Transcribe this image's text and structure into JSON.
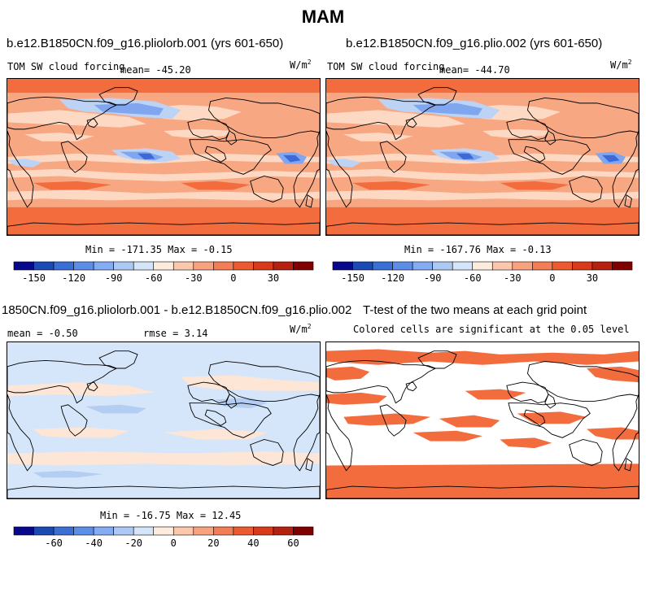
{
  "figure": {
    "title": "MAM"
  },
  "panels": [
    {
      "id": "p1",
      "case_title": "b.e12.B1850CN.f09_g16.pliolorb.001 (yrs 601-650)",
      "variable": "TOM SW cloud forcing",
      "mean_text": "mean= -45.20",
      "units_base": "W/m",
      "units_exp": "2",
      "min_max_text": "Min = -171.35 Max =  -0.15",
      "style": "field"
    },
    {
      "id": "p2",
      "case_title": "b.e12.B1850CN.f09_g16.plio.002 (yrs 601-650)",
      "variable": "TOM SW cloud forcing",
      "mean_text": "mean= -44.70",
      "units_base": "W/m",
      "units_exp": "2",
      "min_max_text": "Min = -167.76 Max =  -0.13",
      "style": "field"
    },
    {
      "id": "p3",
      "case_title": "1850CN.f09_g16.pliolorb.001 - b.e12.B1850CN.f09_g16.plio.002",
      "mean_text": "mean =  -0.50",
      "rmse_text": "rmse =   3.14",
      "units_base": "W/m",
      "units_exp": "2",
      "min_max_text": "Min = -16.75 Max =  12.45",
      "style": "diff"
    },
    {
      "id": "p4",
      "case_title": "T-test of the two means at each grid point",
      "subtitle": "Colored cells are significant at the 0.05 level",
      "style": "ttest"
    }
  ],
  "colorbars": {
    "field": {
      "colors": [
        "#08088c",
        "#1b4ab4",
        "#3a6fd6",
        "#5c8ee8",
        "#83acf2",
        "#acc9f6",
        "#d4e5f9",
        "#fdebde",
        "#fbc8ad",
        "#f8a27f",
        "#f47d55",
        "#ec5a31",
        "#d83a1b",
        "#b5200f",
        "#800000"
      ],
      "tick_labels": [
        "-150",
        "-120",
        "-90",
        "-60",
        "-30",
        "0",
        "30"
      ],
      "tick_positions": [
        1,
        3,
        5,
        7,
        9,
        11,
        13
      ]
    },
    "diff": {
      "colors": [
        "#08088c",
        "#1b4ab4",
        "#3a6fd6",
        "#5c8ee8",
        "#83acf2",
        "#acc9f6",
        "#d4e5f9",
        "#fdebde",
        "#fbc8ad",
        "#f8a27f",
        "#f47d55",
        "#ec5a31",
        "#d83a1b",
        "#b5200f",
        "#800000"
      ],
      "tick_labels": [
        "-60",
        "-40",
        "-20",
        "0",
        "20",
        "40",
        "60"
      ],
      "tick_positions": [
        2,
        4,
        6,
        8,
        10,
        12,
        14
      ]
    }
  },
  "palette": {
    "field_base": "#f8a783",
    "field_strong": "#f26c3e",
    "field_light": "#fdd9c4",
    "field_blue_light": "#bcd3f6",
    "field_blue": "#7fa6ef",
    "field_blue_dark": "#3c68d8",
    "diff_base": "#d6e6fa",
    "diff_warm": "#fde6d6",
    "diff_blue": "#b4cdf3",
    "ttest_fill": "#f26c3e",
    "coast": "#000000"
  }
}
